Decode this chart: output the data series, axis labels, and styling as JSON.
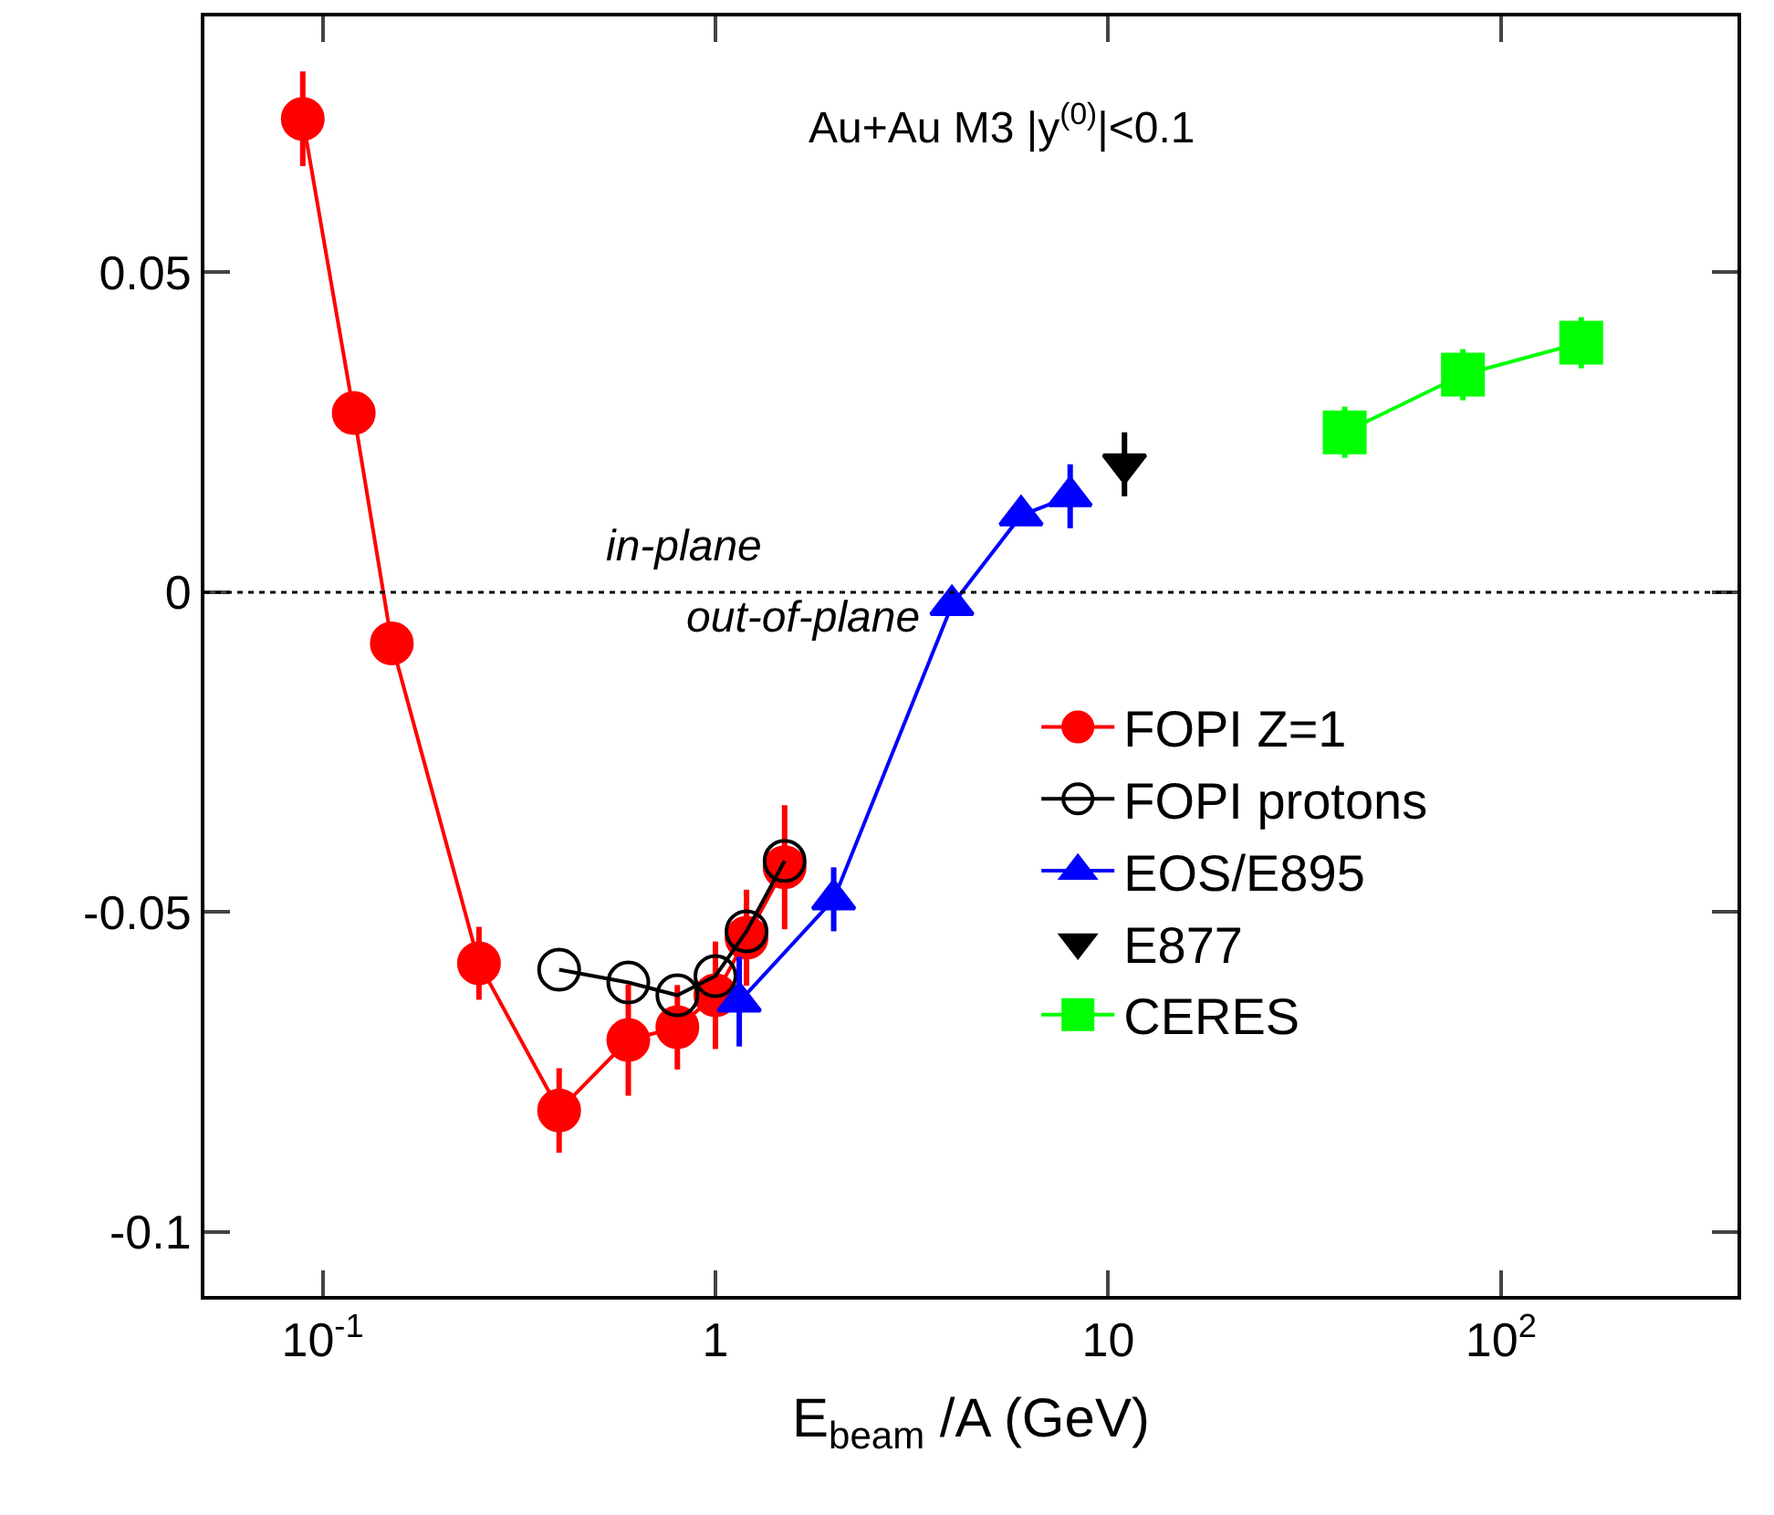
{
  "chart_data": {
    "type": "line",
    "xlabel": "E$_{beam}$ /A (GeV)",
    "log": "x",
    "xlim": [
      0.05,
      400
    ],
    "xticks": [
      {
        "value": 0.1,
        "label": "10$^{-1}$"
      },
      1,
      10,
      {
        "value": 100,
        "label": "10$^{2}$"
      }
    ],
    "ylim": [
      -0.11,
      0.09
    ],
    "yticks": [
      0.05,
      0,
      -0.05,
      -0.1
    ],
    "grid": false,
    "legend": "right",
    "annotations": [
      "Au+Au M3 |y$^{(0)}$|<0.1",
      "in-plane",
      "out-of-plane"
    ],
    "ref_lines": [
      {
        "axis": "y",
        "value": 0,
        "color": "#000000",
        "line_style": "dotted"
      }
    ],
    "series": [
      {
        "name": "FOPI Z=1",
        "color": "#ff0000",
        "marker": "circle",
        "x": [
          0.089,
          0.12,
          0.15,
          0.25,
          0.4,
          0.6,
          0.8,
          1.0,
          1.2,
          1.5
        ],
        "values": [
          0.074,
          0.028,
          -0.008,
          -0.058,
          -0.081,
          -0.07,
          -0.068,
          -0.063,
          -0.054,
          -0.043
        ],
        "errors": [
          0.0074,
          null,
          null,
          0.0057,
          0.0066,
          0.0087,
          0.0066,
          0.0084,
          0.0075,
          0.0097
        ]
      },
      {
        "name": "FOPI protons",
        "color": "#000000",
        "marker": "circle-open",
        "x": [
          0.4,
          0.6,
          0.8,
          1.0,
          1.2,
          1.5
        ],
        "values": [
          -0.059,
          -0.061,
          -0.063,
          -0.06,
          -0.053,
          -0.042
        ]
      },
      {
        "name": "EOS/E895",
        "color": "#0000ff",
        "marker": "triangle",
        "x": [
          1.15,
          2.0,
          4.0,
          6.0,
          8.0
        ],
        "values": [
          -0.064,
          -0.048,
          -0.002,
          0.012,
          0.015
        ],
        "errors": [
          0.007,
          0.005,
          null,
          null,
          0.005
        ]
      },
      {
        "name": "E877",
        "type": "scatter",
        "color": "#000000",
        "marker": "triangle-down",
        "x": [
          11
        ],
        "values": [
          0.02
        ],
        "errors": [
          0.005
        ]
      },
      {
        "name": "CERES",
        "color": "#00ff00",
        "marker": "square",
        "x": [
          40,
          80,
          160
        ],
        "values": [
          0.025,
          0.034,
          0.039
        ],
        "errors": [
          0.004,
          0.004,
          0.004
        ]
      }
    ]
  }
}
